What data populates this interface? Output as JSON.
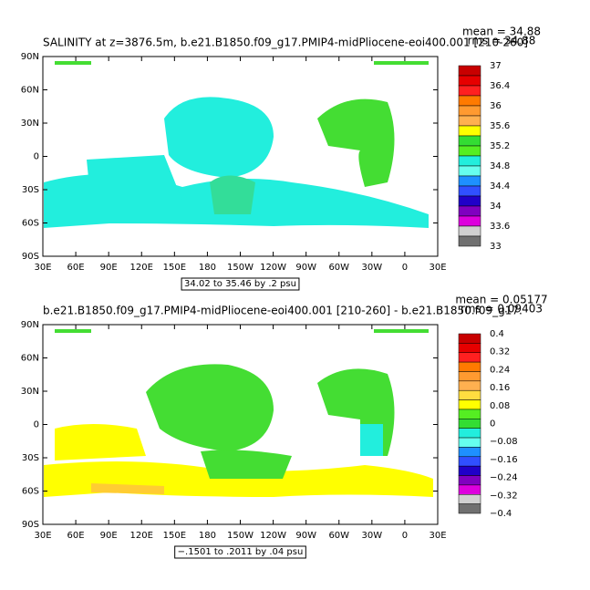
{
  "panels": [
    {
      "title": "SALINITY at z=3876.5m, b.e21.B1850.f09_g17.PMIP4-midPliocene-eoi400.001 [210-260]",
      "mean": "mean = 34.88",
      "rms": "rms = 34.88",
      "contour_info": "34.02 to 35.46 by .2 psu",
      "colorbar_labels": [
        "37",
        "36.4",
        "36",
        "35.6",
        "35.2",
        "34.8",
        "34.4",
        "34",
        "33.6",
        "33"
      ],
      "colorbar_colors": [
        "#c80000",
        "#e60000",
        "#ff2020",
        "#ff7a00",
        "#ff9a30",
        "#ffb050",
        "#ffff00",
        "#33dd33",
        "#55ee22",
        "#22eedd",
        "#66ffee",
        "#1e90ff",
        "#3050ff",
        "#2000c8",
        "#8000c0",
        "#dd00dd",
        "#d0d0d0",
        "#707070"
      ]
    },
    {
      "title": "b.e21.B1850.f09_g17.PMIP4-midPliocene-eoi400.001 [210-260] - b.e21.B1850.f09_g17.",
      "mean": "mean = 0.05177",
      "rms": "rms = 0.09403",
      "contour_info": "−.1501 to .2011 by .04 psu",
      "colorbar_labels": [
        "0.4",
        "0.32",
        "0.24",
        "0.16",
        "0.08",
        "0",
        "−0.08",
        "−0.16",
        "−0.24",
        "−0.32",
        "−0.4"
      ],
      "colorbar_colors": [
        "#c80000",
        "#e60000",
        "#ff2020",
        "#ff7a00",
        "#ff9a30",
        "#ffb050",
        "#ffdd40",
        "#ffff00",
        "#55ee22",
        "#33dd33",
        "#22eedd",
        "#66ffee",
        "#1e90ff",
        "#3050ff",
        "#2000c8",
        "#8000c0",
        "#dd00dd",
        "#d0d0d0",
        "#707070"
      ]
    }
  ],
  "x_labels": [
    "30E",
    "60E",
    "90E",
    "120E",
    "150E",
    "180",
    "150W",
    "120W",
    "90W",
    "60W",
    "30W",
    "0",
    "30E"
  ],
  "y_labels": [
    "90N",
    "60N",
    "30N",
    "0",
    "30S",
    "60S",
    "90S"
  ]
}
